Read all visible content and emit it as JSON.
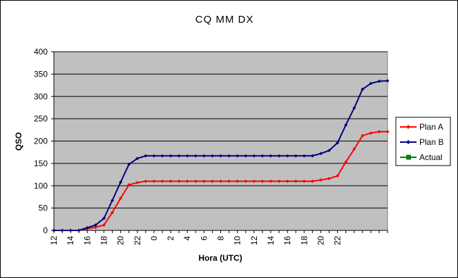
{
  "chart_data": {
    "type": "line",
    "title": "CQ MM DX",
    "xlabel": "Hora (UTC)",
    "ylabel": "QSO",
    "ylim": [
      0,
      400
    ],
    "y_ticks": [
      0,
      50,
      100,
      150,
      200,
      250,
      300,
      350,
      400
    ],
    "x_tick_labels": [
      "12",
      "14",
      "16",
      "18",
      "20",
      "22",
      "0",
      "2",
      "4",
      "6",
      "8",
      "10",
      "12",
      "14",
      "16",
      "18",
      "20",
      "22"
    ],
    "grid": true,
    "legend_position": "right",
    "colors": {
      "plot_background": "#c0c0c0",
      "plan_a": "#ff0000",
      "plan_b": "#000080",
      "actual": "#008000"
    },
    "series": [
      {
        "name": "Plan A",
        "values": [
          0,
          0,
          0,
          0,
          4,
          7,
          12,
          40,
          72,
          102,
          107,
          110,
          110,
          110,
          110,
          110,
          110,
          110,
          110,
          110,
          110,
          110,
          110,
          110,
          110,
          110,
          110,
          110,
          110,
          110,
          110,
          110,
          113,
          116,
          122,
          153,
          182,
          212,
          218,
          221,
          221
        ]
      },
      {
        "name": "Plan B",
        "values": [
          0,
          0,
          0,
          0,
          6,
          12,
          27,
          67,
          108,
          148,
          161,
          167,
          167,
          167,
          167,
          167,
          167,
          167,
          167,
          167,
          167,
          167,
          167,
          167,
          167,
          167,
          167,
          167,
          167,
          167,
          167,
          167,
          172,
          179,
          196,
          236,
          274,
          316,
          329,
          334,
          335
        ]
      },
      {
        "name": "Actual",
        "values": []
      }
    ]
  }
}
